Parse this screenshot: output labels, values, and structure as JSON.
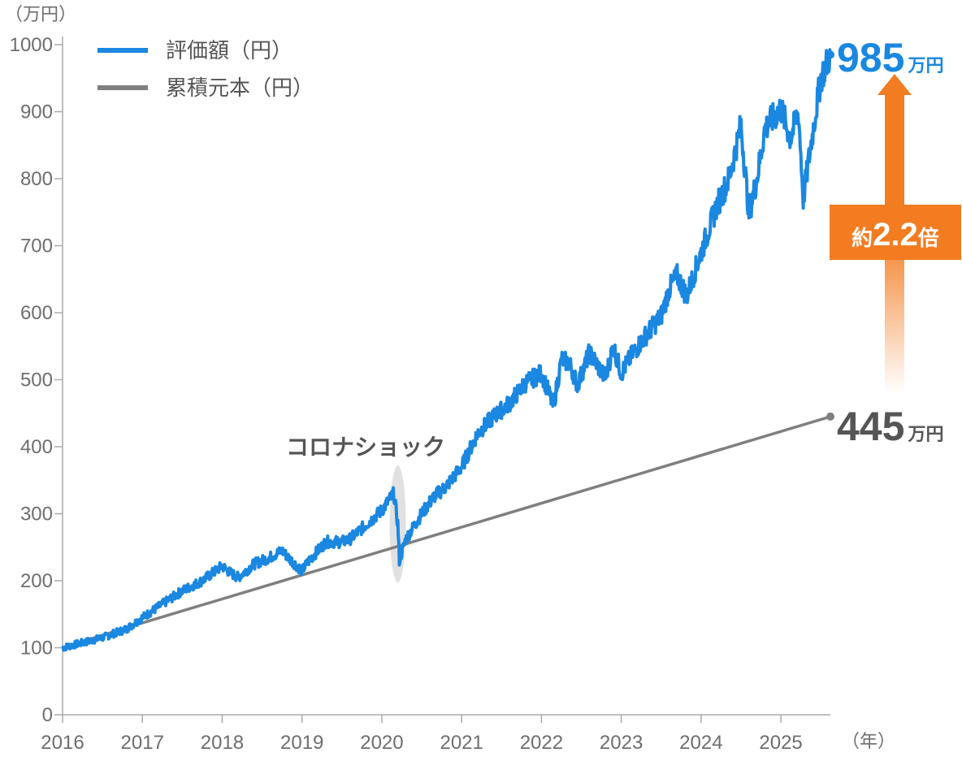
{
  "chart_data": {
    "type": "line",
    "y_unit_label": "（万円）",
    "x_unit_label": "（年）",
    "ylim": [
      0,
      1000
    ],
    "y_ticks": [
      0,
      100,
      200,
      300,
      400,
      500,
      600,
      700,
      800,
      900,
      1000
    ],
    "x_ticks": [
      "2016",
      "2017",
      "2018",
      "2019",
      "2020",
      "2021",
      "2022",
      "2023",
      "2024",
      "2025"
    ],
    "xlim": [
      2016.0,
      2025.62
    ],
    "grid": false,
    "legend_position": "top-left",
    "series": [
      {
        "name": "評価額（円）",
        "color": "#1a87e0",
        "points": [
          [
            2016.0,
            100
          ],
          [
            2016.5,
            115
          ],
          [
            2016.8,
            128
          ],
          [
            2017.0,
            145
          ],
          [
            2017.25,
            165
          ],
          [
            2017.5,
            185
          ],
          [
            2017.75,
            200
          ],
          [
            2018.0,
            222
          ],
          [
            2018.1,
            212
          ],
          [
            2018.2,
            205
          ],
          [
            2018.4,
            225
          ],
          [
            2018.6,
            235
          ],
          [
            2018.75,
            245
          ],
          [
            2018.85,
            232
          ],
          [
            2019.0,
            215
          ],
          [
            2019.1,
            232
          ],
          [
            2019.3,
            258
          ],
          [
            2019.5,
            258
          ],
          [
            2019.6,
            262
          ],
          [
            2019.75,
            278
          ],
          [
            2020.0,
            305
          ],
          [
            2020.15,
            330
          ],
          [
            2020.2,
            285
          ],
          [
            2020.22,
            230
          ],
          [
            2020.3,
            262
          ],
          [
            2020.5,
            300
          ],
          [
            2020.65,
            325
          ],
          [
            2020.8,
            340
          ],
          [
            2020.9,
            355
          ],
          [
            2021.0,
            370
          ],
          [
            2021.2,
            420
          ],
          [
            2021.4,
            445
          ],
          [
            2021.6,
            465
          ],
          [
            2021.8,
            495
          ],
          [
            2022.0,
            510
          ],
          [
            2022.1,
            478
          ],
          [
            2022.15,
            460
          ],
          [
            2022.25,
            530
          ],
          [
            2022.35,
            525
          ],
          [
            2022.45,
            492
          ],
          [
            2022.6,
            540
          ],
          [
            2022.7,
            522
          ],
          [
            2022.8,
            502
          ],
          [
            2022.9,
            550
          ],
          [
            2023.0,
            510
          ],
          [
            2023.15,
            540
          ],
          [
            2023.3,
            565
          ],
          [
            2023.5,
            595
          ],
          [
            2023.6,
            635
          ],
          [
            2023.7,
            655
          ],
          [
            2023.82,
            625
          ],
          [
            2024.0,
            690
          ],
          [
            2024.2,
            760
          ],
          [
            2024.35,
            800
          ],
          [
            2024.5,
            880
          ],
          [
            2024.6,
            748
          ],
          [
            2024.7,
            800
          ],
          [
            2024.8,
            875
          ],
          [
            2025.0,
            905
          ],
          [
            2025.12,
            860
          ],
          [
            2025.22,
            900
          ],
          [
            2025.28,
            770
          ],
          [
            2025.4,
            870
          ],
          [
            2025.5,
            950
          ],
          [
            2025.62,
            985
          ]
        ]
      },
      {
        "name": "累積元本（円）",
        "color": "#7f7f7f",
        "points": [
          [
            2016.0,
            100
          ],
          [
            2016.8,
            130
          ],
          [
            2025.62,
            445
          ]
        ]
      }
    ],
    "annotations": {
      "event_label": "コロナショック",
      "event_x": 2020.2,
      "final_value": "985",
      "final_unit": "万円",
      "principal_value": "445",
      "principal_unit": "万円",
      "ratio_prefix": "約",
      "ratio_value": "2.2",
      "ratio_suffix": "倍",
      "ratio_color": "#f37c21"
    }
  }
}
